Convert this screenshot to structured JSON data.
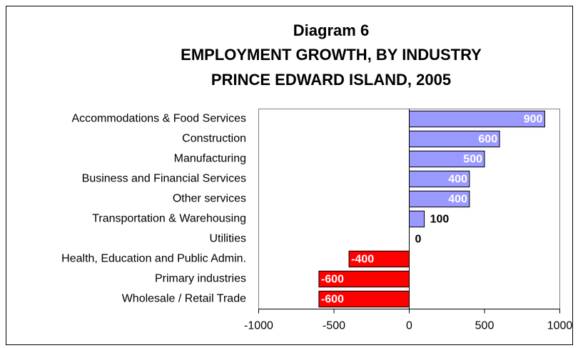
{
  "chart_data": {
    "type": "bar",
    "orientation": "horizontal",
    "title": [
      "Diagram 6",
      "EMPLOYMENT GROWTH, BY INDUSTRY",
      "PRINCE EDWARD ISLAND, 2005"
    ],
    "categories": [
      "Accommodations & Food Services",
      "Construction",
      "Manufacturing",
      "Business and Financial Services",
      "Other services",
      "Transportation & Warehousing",
      "Utilities",
      "Health, Education and Public Admin.",
      "Primary industries",
      "Wholesale / Retail Trade"
    ],
    "values": [
      900,
      600,
      500,
      400,
      400,
      100,
      0,
      -400,
      -600,
      -600
    ],
    "colors": [
      "#9999ff",
      "#9999ff",
      "#9999ff",
      "#9999ff",
      "#9999ff",
      "#9999ff",
      "#9999ff",
      "#ff0000",
      "#ff0000",
      "#ff0000"
    ],
    "xlim": [
      -1000,
      1000
    ],
    "xticks": [
      -1000,
      -500,
      0,
      500,
      1000
    ],
    "grid": false
  }
}
